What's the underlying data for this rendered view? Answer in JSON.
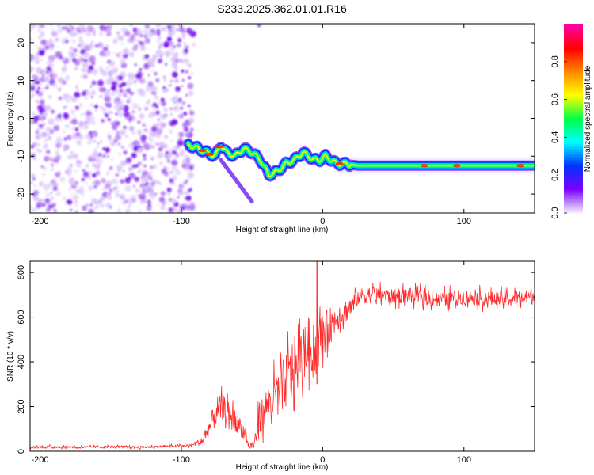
{
  "title": "S233.2025.362.01.01.R16",
  "chart_data": [
    {
      "type": "heatmap",
      "xlabel": "Height of straight line (km)",
      "ylabel": "Frequency (Hz)",
      "xlim": [
        -207,
        150
      ],
      "ylim": [
        -25,
        25
      ],
      "xticks": [
        -200,
        -100,
        0,
        100
      ],
      "yticks": [
        -20,
        -10,
        0,
        10,
        20
      ],
      "noise_region_x": [
        -207,
        -92
      ],
      "noise_density": 0.35,
      "trace": {
        "x": [
          -95,
          -88,
          -82,
          -76,
          -72,
          -68,
          -62,
          -56,
          -50,
          -44,
          -38,
          -32,
          -26,
          -20,
          -14,
          -10,
          -6,
          -2,
          2,
          6,
          10,
          15,
          25,
          40,
          60,
          80,
          100,
          120,
          150
        ],
        "freq_hz": [
          -7,
          -8,
          -9,
          -10,
          -7,
          -9,
          -10,
          -8,
          -9,
          -11,
          -15,
          -14,
          -12,
          -11,
          -9,
          -10,
          -11,
          -11,
          -10,
          -11,
          -12,
          -12,
          -12.5,
          -12.5,
          -12.5,
          -12.5,
          -12.5,
          -12.5,
          -12.5
        ]
      },
      "colorbar": {
        "label": "Normalized spectral amplitude",
        "ticks": [
          "0.0",
          "0.2",
          "0.4",
          "0.6",
          "0.8"
        ],
        "tick_values": [
          0.0,
          0.2,
          0.4,
          0.6,
          0.8
        ],
        "range": [
          0,
          1
        ],
        "colors": [
          "#f3ecfc",
          "#7a00ff",
          "#0033ff",
          "#00ffff",
          "#00ff44",
          "#ffff00",
          "#ff8800",
          "#ff0000",
          "#ff00aa"
        ]
      }
    },
    {
      "type": "line",
      "xlabel": "Height of straight line (km)",
      "ylabel": "SNR (10 * v/v)",
      "xlim": [
        -207,
        150
      ],
      "ylim": [
        0,
        850
      ],
      "xticks": [
        -200,
        -100,
        0,
        100
      ],
      "yticks": [
        0,
        200,
        400,
        600,
        800
      ],
      "color": "#ff2a2a",
      "series": {
        "name": "SNR",
        "x": [
          -207,
          -190,
          -170,
          -150,
          -130,
          -110,
          -95,
          -85,
          -80,
          -75,
          -70,
          -65,
          -60,
          -55,
          -52,
          -48,
          -45,
          -40,
          -35,
          -30,
          -25,
          -20,
          -15,
          -10,
          -5,
          0,
          5,
          10,
          15,
          20,
          25,
          30,
          40,
          50,
          60,
          80,
          100,
          120,
          150
        ],
        "snr": [
          18,
          20,
          18,
          20,
          18,
          22,
          25,
          45,
          110,
          180,
          200,
          150,
          130,
          80,
          20,
          35,
          140,
          200,
          230,
          260,
          330,
          380,
          420,
          480,
          450,
          520,
          560,
          600,
          620,
          650,
          690,
          700,
          700,
          690,
          700,
          680,
          690,
          680,
          690
        ],
        "spread": [
          10,
          10,
          10,
          10,
          10,
          10,
          10,
          30,
          70,
          120,
          90,
          100,
          90,
          60,
          20,
          60,
          120,
          150,
          180,
          200,
          240,
          240,
          220,
          220,
          200,
          180,
          150,
          120,
          100,
          90,
          70,
          70,
          60,
          60,
          60,
          60,
          60,
          60,
          60
        ],
        "peak": {
          "x": -4,
          "snr": 855
        }
      }
    }
  ]
}
